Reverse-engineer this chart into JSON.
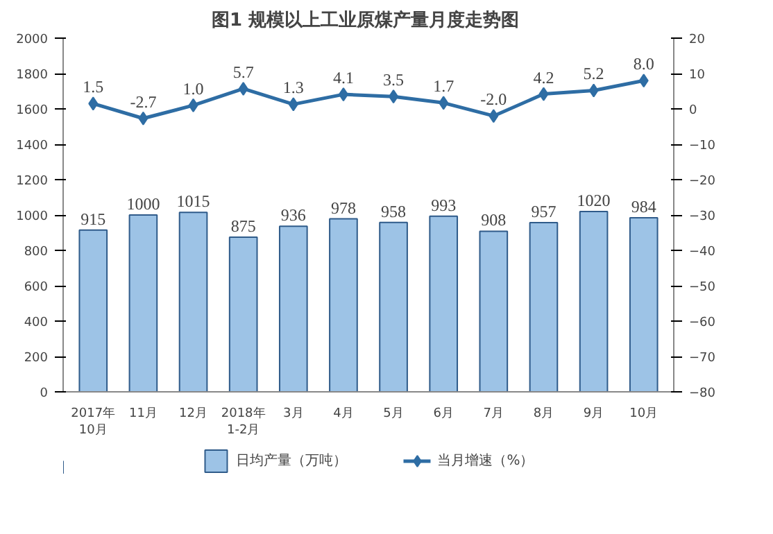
{
  "chart_data": {
    "type": "bar",
    "title": "图1  规模以上工业原煤产量月度走势图",
    "categories": [
      "2017年\n10月",
      "11月",
      "12月",
      "2018年\n1-2月",
      "3月",
      "4月",
      "5月",
      "6月",
      "7月",
      "8月",
      "9月",
      "10月"
    ],
    "series": [
      {
        "name": "日均产量（万吨）",
        "color": "#9dc3e6",
        "values": [
          915,
          1000,
          1015,
          875,
          936,
          978,
          958,
          993,
          908,
          957,
          1020,
          984
        ]
      },
      {
        "name": "当月增速（%）",
        "type": "line",
        "axis": "y2",
        "color": "#2e6da4",
        "marker": "diamond",
        "values": [
          1.5,
          -2.7,
          1.0,
          5.7,
          1.3,
          4.1,
          3.5,
          1.7,
          -2.0,
          4.2,
          5.2,
          8.0
        ],
        "value_labels": [
          "1.5",
          "-2.7",
          "1.0",
          "5.7",
          "1.3",
          "4.1",
          "3.5",
          "1.7",
          "-2.0",
          "4.2",
          "5.2",
          "8.0"
        ]
      }
    ],
    "ylim": [
      0,
      2000
    ],
    "yticks": [
      0,
      200,
      400,
      600,
      800,
      1000,
      1200,
      1400,
      1600,
      1800,
      2000
    ],
    "y2lim": [
      -80,
      20
    ],
    "y2ticks": [
      -80,
      -70,
      -60,
      -50,
      -40,
      -30,
      -20,
      -10,
      0,
      10,
      20
    ],
    "data_labels": true,
    "grid": false,
    "legend": "bottom"
  }
}
